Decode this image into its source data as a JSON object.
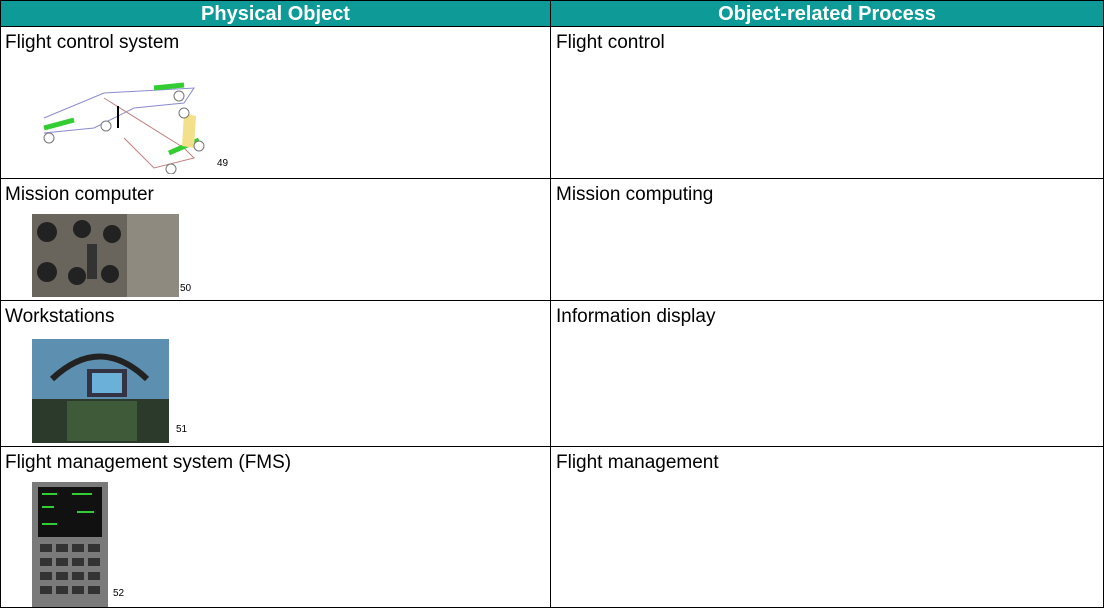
{
  "table": {
    "headers": [
      "Physical Object",
      "Object-related Process"
    ],
    "rows": [
      {
        "object": "Flight control system",
        "footnote": 49,
        "process": "Flight control"
      },
      {
        "object": "Mission computer",
        "footnote": 50,
        "process": "Mission computing"
      },
      {
        "object": "Workstations",
        "footnote": 51,
        "process": "Information display"
      },
      {
        "object": "Flight management system (FMS)",
        "footnote": 52,
        "process": "Flight management"
      }
    ]
  }
}
